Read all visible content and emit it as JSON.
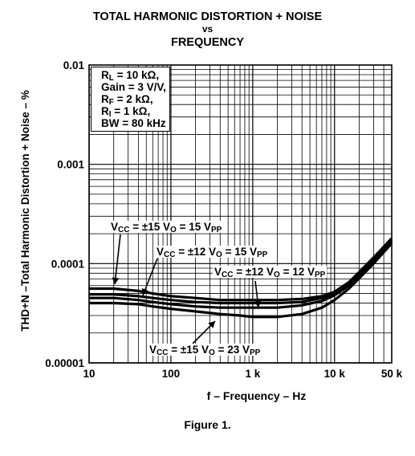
{
  "title": {
    "line1": "TOTAL HARMONIC DISTORTION + NOISE",
    "line2": "vs",
    "line3": "FREQUENCY"
  },
  "caption": "Figure 1.",
  "conditions": [
    {
      "main": "R",
      "sub": "L",
      "rest": " = 10 kΩ,"
    },
    {
      "main": "Gain = 3 V/V,",
      "sub": "",
      "rest": ""
    },
    {
      "main": "R",
      "sub": "F",
      "rest": " = 2 kΩ,"
    },
    {
      "main": "R",
      "sub": "I",
      "rest": " = 1 kΩ,"
    },
    {
      "main": "BW = 80 kHz",
      "sub": "",
      "rest": ""
    }
  ],
  "annotations": [
    {
      "pre": "V",
      "sub1": "CC",
      "mid": " = ±15 V",
      "sub2": "O",
      "post": " = 15 V",
      "sub3": "PP"
    },
    {
      "pre": "V",
      "sub1": "CC",
      "mid": " = ±12 V",
      "sub2": "O",
      "post": " = 15 V",
      "sub3": "PP"
    },
    {
      "pre": "V",
      "sub1": "CC",
      "mid": " = ±12 V",
      "sub2": "O",
      "post": " = 12 V",
      "sub3": "PP"
    },
    {
      "pre": "V",
      "sub1": "CC",
      "mid": " = ±15 V",
      "sub2": "O",
      "post": " = 23 V",
      "sub3": "PP"
    }
  ],
  "chart_data": {
    "type": "line",
    "title": "TOTAL HARMONIC DISTORTION + NOISE vs FREQUENCY",
    "xlabel": "f – Frequency – Hz",
    "ylabel": "THD+N –Total Harmonic Distortion + Noise – %",
    "x_scale": "log",
    "y_scale": "log",
    "xlim": [
      10,
      50000
    ],
    "ylim": [
      1e-05,
      0.01
    ],
    "x_ticks": [
      {
        "value": 10,
        "label": "10"
      },
      {
        "value": 100,
        "label": "100"
      },
      {
        "value": 1000,
        "label": "1 k"
      },
      {
        "value": 10000,
        "label": "10 k"
      },
      {
        "value": 50000,
        "label": "50 k"
      }
    ],
    "y_ticks": [
      {
        "value": 1e-05,
        "label": "0.00001"
      },
      {
        "value": 0.0001,
        "label": "0.0001"
      },
      {
        "value": 0.001,
        "label": "0.001"
      },
      {
        "value": 0.01,
        "label": "0.01"
      }
    ],
    "grid": true,
    "series": [
      {
        "name": "VCC = ±15 V, VO = 15 VPP",
        "x": [
          10,
          20,
          40,
          60,
          100,
          200,
          400,
          700,
          1000,
          2000,
          4000,
          7000,
          10000,
          15000,
          20000,
          30000,
          50000
        ],
        "y": [
          5.6e-05,
          5.6e-05,
          5.3e-05,
          5e-05,
          4.7e-05,
          4.5e-05,
          4.3e-05,
          4.3e-05,
          4.3e-05,
          4.3e-05,
          4.4e-05,
          4.7e-05,
          5.2e-05,
          6.5e-05,
          8.2e-05,
          0.000115,
          0.00018
        ]
      },
      {
        "name": "VCC = ±12 V, VO = 15 VPP",
        "x": [
          10,
          20,
          40,
          60,
          100,
          200,
          400,
          700,
          1000,
          2000,
          4000,
          7000,
          10000,
          15000,
          20000,
          30000,
          50000
        ],
        "y": [
          4.9e-05,
          4.9e-05,
          4.7e-05,
          4.5e-05,
          4.3e-05,
          4.1e-05,
          4e-05,
          4e-05,
          4e-05,
          4e-05,
          4.1e-05,
          4.5e-05,
          5e-05,
          6.2e-05,
          7.8e-05,
          0.00011,
          0.000172
        ]
      },
      {
        "name": "VCC = ±12 V, VO = 12 VPP",
        "x": [
          10,
          20,
          40,
          60,
          100,
          200,
          400,
          700,
          1000,
          2000,
          4000,
          7000,
          10000,
          15000,
          20000,
          30000,
          50000
        ],
        "y": [
          4.5e-05,
          4.5e-05,
          4.3e-05,
          4.1e-05,
          3.9e-05,
          3.7e-05,
          3.6e-05,
          3.6e-05,
          3.6e-05,
          3.6e-05,
          3.8e-05,
          4.2e-05,
          4.8e-05,
          6e-05,
          7.5e-05,
          0.000106,
          0.000165
        ]
      },
      {
        "name": "VCC = ±15 V, VO = 23 VPP",
        "x": [
          10,
          20,
          40,
          60,
          100,
          200,
          400,
          700,
          1000,
          2000,
          4000,
          7000,
          10000,
          15000,
          20000,
          30000,
          50000
        ],
        "y": [
          4e-05,
          4e-05,
          3.9e-05,
          3.7e-05,
          3.5e-05,
          3.3e-05,
          3.1e-05,
          3e-05,
          2.9e-05,
          2.9e-05,
          3.1e-05,
          3.6e-05,
          4.3e-05,
          5.6e-05,
          7.1e-05,
          0.0001,
          0.00016
        ]
      }
    ]
  }
}
